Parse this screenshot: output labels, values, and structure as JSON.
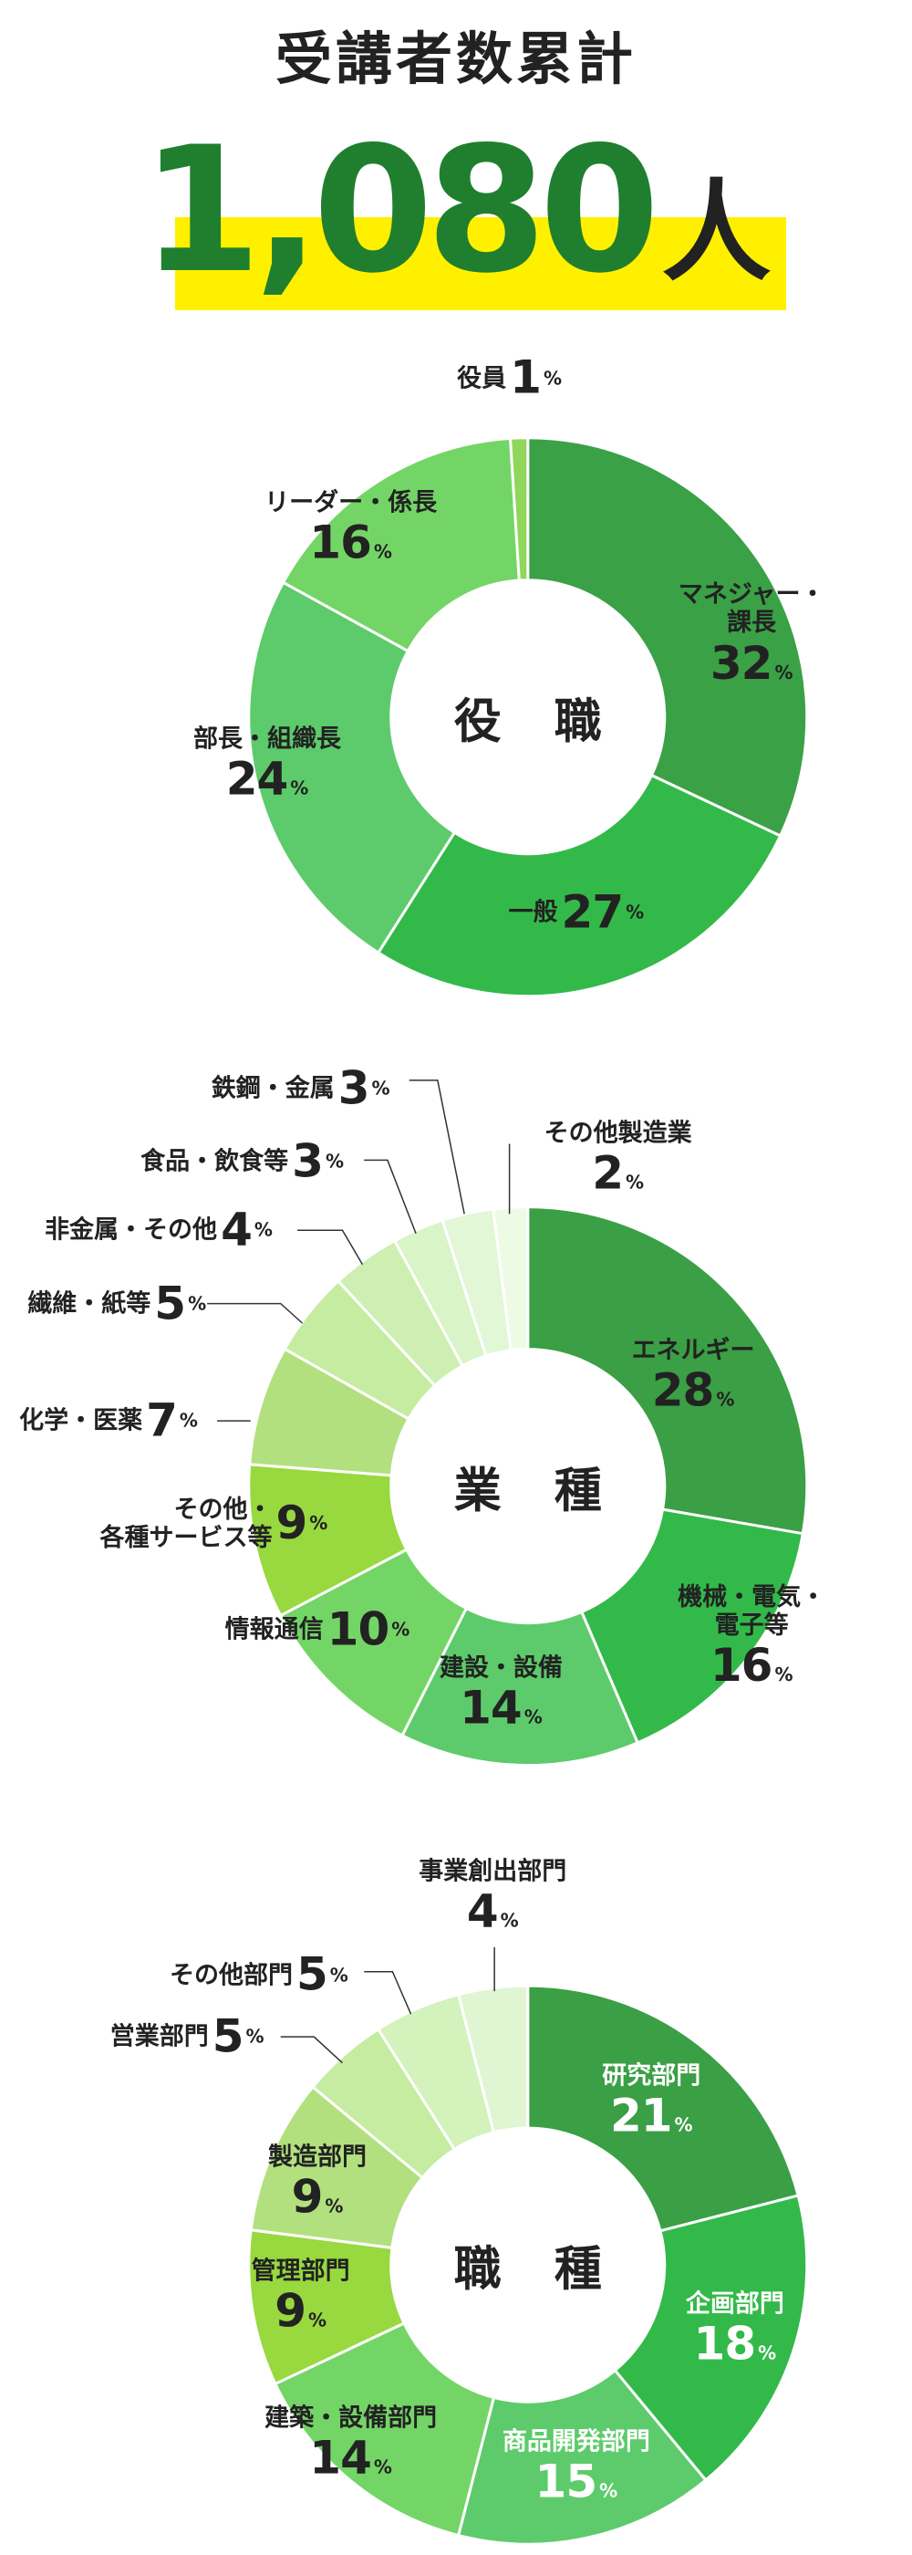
{
  "header": {
    "title": "受講者数累計",
    "total": "1,080",
    "total_unit": "人"
  },
  "chart_data": [
    {
      "type": "donut",
      "title": "役 職",
      "unit": "%",
      "categories": [
        "マネジャー・課長",
        "一般",
        "部長・組織長",
        "リーダー・係長",
        "役員"
      ],
      "values": [
        32,
        27,
        24,
        16,
        1
      ],
      "colors": [
        "#3aa146",
        "#33b94a",
        "#5dcb6b",
        "#74d567",
        "#8fd65a"
      ]
    },
    {
      "type": "donut",
      "title": "業 種",
      "unit": "%",
      "categories": [
        "エネルギー",
        "機械・電気・電子等",
        "建設・設備",
        "情報通信",
        "その他・\n各種サービス等",
        "化学・医薬",
        "繊維・紙等",
        "非金属・その他",
        "食品・飲食等",
        "鉄鋼・金属",
        "その他製造業"
      ],
      "values": [
        28,
        16,
        14,
        10,
        9,
        7,
        5,
        4,
        3,
        3,
        2
      ],
      "colors": [
        "#3a9f45",
        "#33b94a",
        "#5dcb6b",
        "#74d567",
        "#98d93f",
        "#b3e07e",
        "#c5eca0",
        "#cdefb2",
        "#d9f4c6",
        "#e2f7d5",
        "#edfbe5"
      ]
    },
    {
      "type": "donut",
      "title": "職 種",
      "unit": "%",
      "categories": [
        "研究部門",
        "企画部門",
        "商品開発部門",
        "建築・設備部門",
        "管理部門",
        "製造部門",
        "営業部門",
        "その他部門",
        "事業創出部門"
      ],
      "values": [
        21,
        18,
        15,
        14,
        9,
        9,
        5,
        5,
        4
      ],
      "colors": [
        "#3a9f45",
        "#33b94a",
        "#5dcb6b",
        "#74d567",
        "#98d93f",
        "#b3e07e",
        "#c5eca0",
        "#d3f2bc",
        "#e0f6d2"
      ]
    }
  ]
}
